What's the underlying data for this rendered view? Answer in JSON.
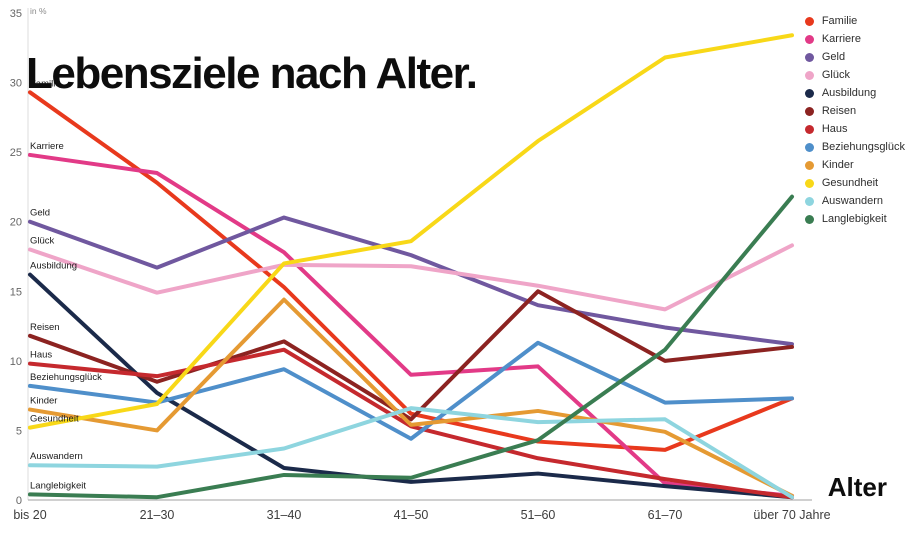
{
  "title": "Lebensziele nach Alter.",
  "chart_data": {
    "type": "line",
    "title": "Lebensziele nach Alter.",
    "unit_label": "in %",
    "x_axis_label": "Alter",
    "xlabel": "Alter",
    "ylabel": "in %",
    "ylim": [
      0,
      35
    ],
    "y_ticks": [
      0,
      5,
      10,
      15,
      20,
      25,
      30,
      35
    ],
    "grid": false,
    "legend_position": "top-right",
    "categories": [
      "bis 20",
      "21–30",
      "31–40",
      "41–50",
      "51–60",
      "61–70",
      "über 70 Jahre"
    ],
    "series": [
      {
        "name": "Familie",
        "color": "#e8391d",
        "values": [
          29.3,
          22.8,
          15.3,
          6.2,
          4.2,
          3.6,
          7.3
        ]
      },
      {
        "name": "Karriere",
        "color": "#e23a87",
        "values": [
          24.8,
          23.5,
          17.8,
          9.0,
          9.6,
          1.2,
          0.3
        ]
      },
      {
        "name": "Geld",
        "color": "#70589f",
        "values": [
          20.0,
          16.7,
          20.3,
          17.6,
          14.0,
          12.4,
          11.2
        ]
      },
      {
        "name": "Glück",
        "color": "#efa5c8",
        "values": [
          18.0,
          14.9,
          16.9,
          16.8,
          15.4,
          13.7,
          18.3
        ]
      },
      {
        "name": "Ausbildung",
        "color": "#1b2a4a",
        "values": [
          16.2,
          7.7,
          2.3,
          1.3,
          1.9,
          1.0,
          0.2
        ]
      },
      {
        "name": "Reisen",
        "color": "#8c2321",
        "values": [
          11.8,
          8.5,
          11.4,
          5.8,
          15.0,
          10.0,
          11.0
        ]
      },
      {
        "name": "Haus",
        "color": "#c5292e",
        "values": [
          9.8,
          8.9,
          10.8,
          5.3,
          3.0,
          1.5,
          0.2
        ]
      },
      {
        "name": "Beziehungsglück",
        "color": "#4f8fca",
        "values": [
          8.2,
          7.0,
          9.4,
          4.4,
          11.3,
          7.0,
          7.3
        ]
      },
      {
        "name": "Kinder",
        "color": "#e59a33",
        "values": [
          6.5,
          5.0,
          14.4,
          5.4,
          6.4,
          4.9,
          0.3
        ]
      },
      {
        "name": "Gesundheit",
        "color": "#f8d818",
        "values": [
          5.2,
          6.9,
          17.0,
          18.6,
          25.8,
          31.8,
          33.4
        ]
      },
      {
        "name": "Auswandern",
        "color": "#8ed5df",
        "values": [
          2.5,
          2.4,
          3.7,
          6.6,
          5.6,
          5.8,
          0.2
        ]
      },
      {
        "name": "Langlebigkeit",
        "color": "#3a7d52",
        "values": [
          0.4,
          0.2,
          1.8,
          1.6,
          4.3,
          10.8,
          21.8
        ]
      }
    ]
  }
}
